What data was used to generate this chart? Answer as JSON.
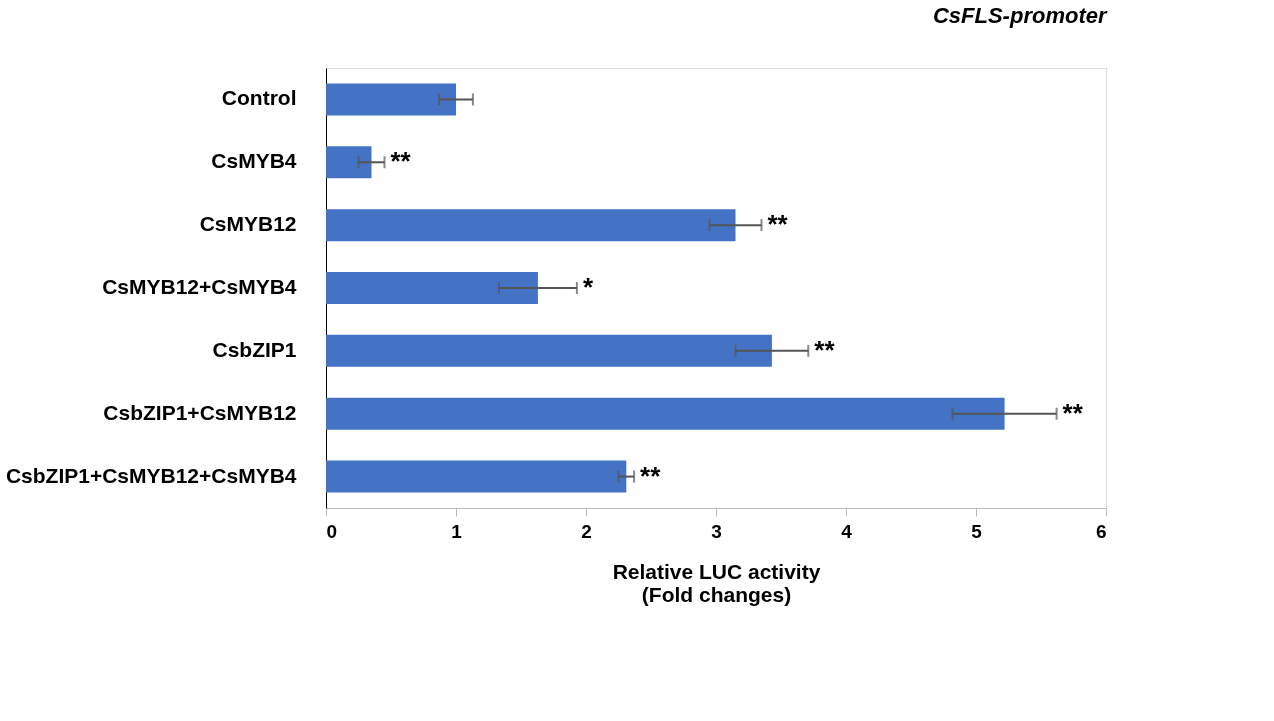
{
  "chart_data": {
    "type": "bar",
    "orientation": "horizontal",
    "title": "CsFLS-promoter",
    "xlabel": "Relative LUC activity\n(Fold changes)",
    "categories": [
      "Control",
      "CsMYB4",
      "CsMYB12",
      "CsMYB12+CsMYB4",
      "CsbZIP1",
      "CsbZIP1+CsMYB12",
      "CsbZIP1+CsMYB12+CsMYB4"
    ],
    "values": [
      1.0,
      0.35,
      3.15,
      1.63,
      3.43,
      5.22,
      2.31
    ],
    "errors": [
      0.13,
      0.1,
      0.2,
      0.3,
      0.28,
      0.4,
      0.06
    ],
    "color": "#4472c4",
    "xlim": [
      0,
      6
    ],
    "xticks": [
      0,
      1,
      2,
      3,
      4,
      5,
      6
    ],
    "grid": false,
    "value_labels": [
      null,
      "**",
      "**",
      "*",
      "**",
      "**",
      "**"
    ]
  }
}
